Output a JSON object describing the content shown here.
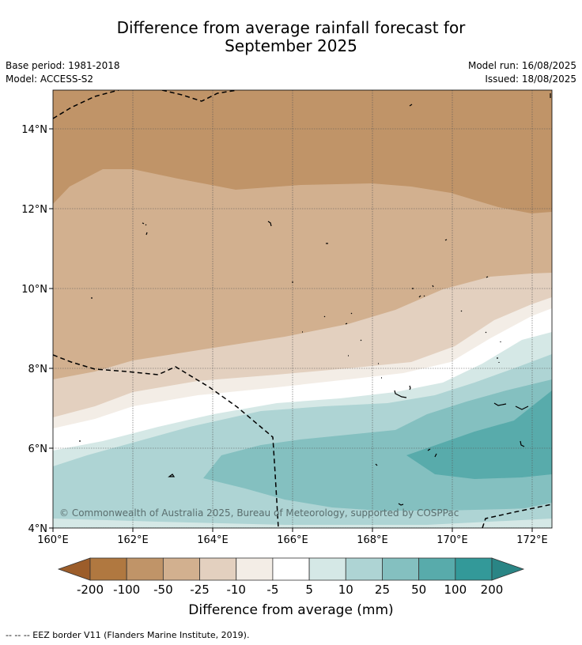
{
  "header": {
    "title_line1": "Difference from average rainfall forecast for",
    "title_line2": "September 2025",
    "base_period": "Base period: 1981-2018",
    "model": "Model: ACCESS-S2",
    "model_run": "Model run: 16/08/2025",
    "issued": "Issued: 18/08/2025"
  },
  "map": {
    "lat_labels": [
      "14°N",
      "12°N",
      "10°N",
      "8°N",
      "6°N",
      "4°N"
    ],
    "lon_labels": [
      "160°E",
      "162°E",
      "164°E",
      "166°E",
      "168°E",
      "170°E",
      "172°E"
    ],
    "copyright": "© Commonwealth of Australia 2025, Bureau of Meteorology, supported by COSPPac"
  },
  "colorbar": {
    "title": "Difference from average (mm)",
    "ticks": [
      "-200",
      "-100",
      "-50",
      "-25",
      "-10",
      "-5",
      "5",
      "10",
      "25",
      "50",
      "100",
      "200"
    ],
    "colors": [
      "#9c5d2a",
      "#b07840",
      "#c09468",
      "#d2b08f",
      "#e3d0bf",
      "#f3ede6",
      "#ffffff",
      "#d5e8e6",
      "#aed4d4",
      "#84c0c0",
      "#58abab",
      "#339999",
      "#2a8585"
    ]
  },
  "footnote": "--  --  -- EEZ border V11 (Flanders Marine Institute, 2019)."
}
